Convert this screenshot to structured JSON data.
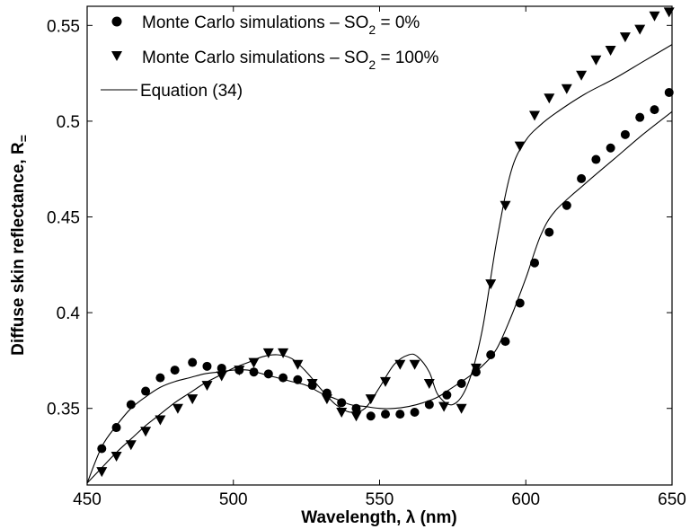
{
  "chart_data": {
    "type": "scatter",
    "xlabel": "Wavelength, λ (nm)",
    "ylabel": "Diffuse skin reflectance, R",
    "ylabel_subscript": "=",
    "xlim": [
      450,
      650
    ],
    "ylim": [
      0.31,
      0.56
    ],
    "xticks": [
      450,
      500,
      550,
      600,
      650
    ],
    "yticks": [
      0.35,
      0.4,
      0.45,
      0.5,
      0.55
    ],
    "xtick_labels": [
      "450",
      "500",
      "550",
      "600",
      "650"
    ],
    "ytick_labels": [
      "0.35",
      "0.4",
      "0.45",
      "0.5",
      "0.55"
    ],
    "grid": false,
    "legend_position": "top-left",
    "series": [
      {
        "label_parts": {
          "pre": "Monte Carlo simulations – SO",
          "sub": "2",
          "post": " = 0%"
        },
        "marker": "circle",
        "x": [
          455,
          460,
          465,
          470,
          475,
          480,
          486,
          491,
          496,
          502,
          507,
          512,
          517,
          522,
          527,
          532,
          537,
          542,
          547,
          552,
          557,
          562,
          567,
          573,
          578,
          583,
          588,
          593,
          598,
          603,
          608,
          614,
          619,
          624,
          629,
          634,
          639,
          644,
          649
        ],
        "y": [
          0.329,
          0.34,
          0.352,
          0.359,
          0.366,
          0.37,
          0.374,
          0.372,
          0.371,
          0.37,
          0.369,
          0.368,
          0.366,
          0.365,
          0.362,
          0.358,
          0.353,
          0.35,
          0.346,
          0.347,
          0.347,
          0.348,
          0.352,
          0.357,
          0.363,
          0.369,
          0.378,
          0.385,
          0.405,
          0.426,
          0.442,
          0.456,
          0.47,
          0.48,
          0.486,
          0.493,
          0.502,
          0.506,
          0.515
        ]
      },
      {
        "label_parts": {
          "pre": "Monte Carlo simulations – SO",
          "sub": "2",
          "post": " = 100%"
        },
        "marker": "triangle-down",
        "x": [
          455,
          460,
          465,
          470,
          475,
          481,
          486,
          491,
          496,
          502,
          507,
          512,
          517,
          522,
          527,
          532,
          537,
          542,
          547,
          552,
          557,
          562,
          567,
          572,
          578,
          583,
          588,
          593,
          598,
          603,
          608,
          614,
          619,
          624,
          629,
          634,
          639,
          644,
          649
        ],
        "y": [
          0.317,
          0.325,
          0.331,
          0.338,
          0.344,
          0.35,
          0.355,
          0.362,
          0.367,
          0.37,
          0.374,
          0.379,
          0.379,
          0.373,
          0.363,
          0.355,
          0.348,
          0.346,
          0.355,
          0.364,
          0.373,
          0.373,
          0.363,
          0.351,
          0.35,
          0.371,
          0.415,
          0.456,
          0.487,
          0.503,
          0.512,
          0.517,
          0.524,
          0.532,
          0.537,
          0.544,
          0.548,
          0.555,
          0.557
        ]
      },
      {
        "label": "Equation (34)",
        "type": "line",
        "curves": [
          {
            "x": [
              450,
              455,
              460,
              465,
              470,
              475,
              480,
              485,
              490,
              495,
              500,
              505,
              510,
              515,
              520,
              525,
              530,
              535,
              540,
              545,
              550,
              555,
              560,
              565,
              570,
              575,
              580,
              585,
              590,
              595,
              600,
              605,
              610,
              620,
              630,
              640,
              650
            ],
            "y": [
              0.311,
              0.33,
              0.341,
              0.35,
              0.356,
              0.361,
              0.364,
              0.366,
              0.368,
              0.369,
              0.37,
              0.37,
              0.368,
              0.366,
              0.364,
              0.362,
              0.358,
              0.355,
              0.352,
              0.351,
              0.35,
              0.35,
              0.351,
              0.353,
              0.356,
              0.361,
              0.366,
              0.372,
              0.381,
              0.398,
              0.418,
              0.44,
              0.453,
              0.467,
              0.48,
              0.493,
              0.505
            ]
          },
          {
            "x": [
              450,
              455,
              460,
              465,
              470,
              475,
              480,
              485,
              490,
              495,
              500,
              505,
              510,
              515,
              520,
              525,
              530,
              535,
              540,
              545,
              550,
              555,
              560,
              563,
              567,
              570,
              575,
              580,
              585,
              590,
              595,
              600,
              605,
              610,
              620,
              630,
              640,
              650
            ],
            "y": [
              0.311,
              0.319,
              0.327,
              0.334,
              0.341,
              0.347,
              0.353,
              0.358,
              0.363,
              0.367,
              0.371,
              0.374,
              0.377,
              0.378,
              0.376,
              0.369,
              0.36,
              0.352,
              0.348,
              0.35,
              0.361,
              0.373,
              0.378,
              0.377,
              0.369,
              0.357,
              0.352,
              0.362,
              0.39,
              0.437,
              0.474,
              0.49,
              0.498,
              0.504,
              0.514,
              0.522,
              0.531,
              0.54
            ]
          }
        ]
      }
    ]
  }
}
